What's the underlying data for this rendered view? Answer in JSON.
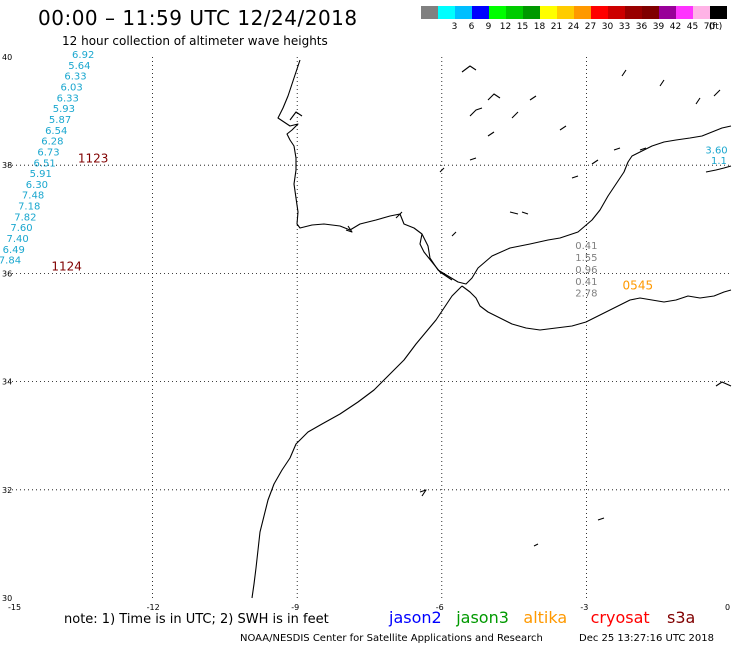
{
  "header": {
    "title": "00:00 – 11:59 UTC 12/24/2018",
    "subtitle": "12 hour collection of altimeter wave heights"
  },
  "color_scale": {
    "unit_label": "(ft)",
    "items": [
      {
        "color": "#808080",
        "label": ""
      },
      {
        "color": "#00ffff",
        "label": "3"
      },
      {
        "color": "#00bfff",
        "label": "6"
      },
      {
        "color": "#0000ff",
        "label": "9"
      },
      {
        "color": "#00ff00",
        "label": "12"
      },
      {
        "color": "#00cc00",
        "label": "15"
      },
      {
        "color": "#009900",
        "label": "18"
      },
      {
        "color": "#ffff00",
        "label": "21"
      },
      {
        "color": "#ffcc00",
        "label": "24"
      },
      {
        "color": "#ff9900",
        "label": "27"
      },
      {
        "color": "#ff0000",
        "label": "30"
      },
      {
        "color": "#cc0000",
        "label": "33"
      },
      {
        "color": "#990000",
        "label": "36"
      },
      {
        "color": "#800000",
        "label": "39"
      },
      {
        "color": "#990099",
        "label": "42"
      },
      {
        "color": "#ff33ff",
        "label": "45"
      },
      {
        "color": "#ffb3e6",
        "label": "70"
      },
      {
        "color": "#000000",
        "label": ""
      }
    ]
  },
  "axes": {
    "lat_labels": [
      "40",
      "38",
      "36",
      "34",
      "32",
      "30"
    ],
    "lon_labels": [
      "-15",
      "-12",
      "-9",
      "-6",
      "-3",
      "0"
    ]
  },
  "tracks": [
    {
      "pass_label": "1123",
      "pass_color": "#800000",
      "color": "#1aa7cf",
      "points": [
        {
          "lat": 39.98,
          "lon": -13.44,
          "swh": "6.92"
        },
        {
          "lat": 39.78,
          "lon": -13.52,
          "swh": "5.64"
        },
        {
          "lat": 39.58,
          "lon": -13.6,
          "swh": "6.33"
        },
        {
          "lat": 39.38,
          "lon": -13.68,
          "swh": "6.03"
        },
        {
          "lat": 39.18,
          "lon": -13.76,
          "swh": "6.33"
        },
        {
          "lat": 38.98,
          "lon": -13.84,
          "swh": "5.93"
        },
        {
          "lat": 38.78,
          "lon": -13.92,
          "swh": "5.87"
        },
        {
          "lat": 38.58,
          "lon": -14.0,
          "swh": "6.54"
        },
        {
          "lat": 38.38,
          "lon": -14.08,
          "swh": "6.28"
        },
        {
          "lat": 38.18,
          "lon": -14.16,
          "swh": "6.73"
        },
        {
          "lat": 37.98,
          "lon": -14.24,
          "swh": "6.51"
        },
        {
          "lat": 37.78,
          "lon": -14.32,
          "swh": "5.91"
        },
        {
          "lat": 37.58,
          "lon": -14.4,
          "swh": "6.30"
        },
        {
          "lat": 37.38,
          "lon": -14.48,
          "swh": "7.48"
        },
        {
          "lat": 37.18,
          "lon": -14.56,
          "swh": "7.18"
        },
        {
          "lat": 36.98,
          "lon": -14.64,
          "swh": "7.82"
        },
        {
          "lat": 36.78,
          "lon": -14.72,
          "swh": "7.60"
        },
        {
          "lat": 36.58,
          "lon": -14.8,
          "swh": "7.40"
        },
        {
          "lat": 36.38,
          "lon": -14.88,
          "swh": "6.49"
        },
        {
          "lat": 36.18,
          "lon": -14.96,
          "swh": "7.84"
        }
      ]
    },
    {
      "pass_label": "1124",
      "pass_color": "#800000",
      "color": "#1aa7cf",
      "points": []
    },
    {
      "pass_label": "0545",
      "pass_color": "#ff9900",
      "color": "#808080",
      "points": [
        {
          "lat": 36.45,
          "lon": -3.0,
          "swh": "0.41"
        },
        {
          "lat": 36.23,
          "lon": -3.0,
          "swh": "1.55"
        },
        {
          "lat": 36.01,
          "lon": -3.0,
          "swh": "0.96"
        },
        {
          "lat": 35.79,
          "lon": -3.0,
          "swh": "0.41"
        },
        {
          "lat": 35.57,
          "lon": -3.0,
          "swh": "2.78"
        }
      ]
    },
    {
      "pass_label": "",
      "pass_color": "#1aa7cf",
      "color": "#1aa7cf",
      "points": [
        {
          "lat": 38.22,
          "lon": -0.3,
          "swh": "3.60"
        },
        {
          "lat": 38.02,
          "lon": -0.25,
          "swh": "1.1"
        }
      ]
    }
  ],
  "footer": {
    "note": "note: 1) Time is in UTC; 2) SWH is in feet",
    "satellites": [
      {
        "name": "jason2",
        "color": "#0000ff"
      },
      {
        "name": "jason3",
        "color": "#009900"
      },
      {
        "name": "altika",
        "color": "#ff9900"
      },
      {
        "name": "cryosat",
        "color": "#ff0000"
      },
      {
        "name": "s3a",
        "color": "#800000"
      }
    ],
    "credit": "NOAA/NESDIS Center for Satellite Applications and Research",
    "timestamp": "Dec 25 13:27:16 UTC 2018"
  }
}
